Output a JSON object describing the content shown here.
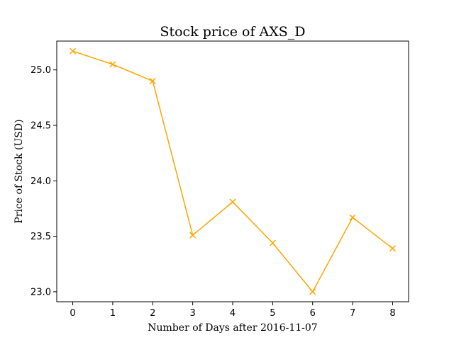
{
  "chart_data": {
    "type": "line",
    "title": "Stock price of AXS_D",
    "xlabel": "Number of Days after 2016-11-07",
    "ylabel": "Price of Stock (USD)",
    "x": [
      0,
      1,
      2,
      3,
      4,
      5,
      6,
      7,
      8
    ],
    "xticks": [
      "0",
      "1",
      "2",
      "3",
      "4",
      "5",
      "6",
      "7",
      "8"
    ],
    "yticks": [
      "23.0",
      "23.5",
      "24.0",
      "24.5",
      "25.0"
    ],
    "xlim": [
      -0.4,
      8.4
    ],
    "ylim": [
      22.91,
      25.26
    ],
    "grid": false,
    "series": [
      {
        "values": [
          25.17,
          25.05,
          24.9,
          23.51,
          23.81,
          23.44,
          23.0,
          23.67,
          23.39
        ],
        "color": "#ffa500",
        "marker": "x"
      }
    ]
  }
}
